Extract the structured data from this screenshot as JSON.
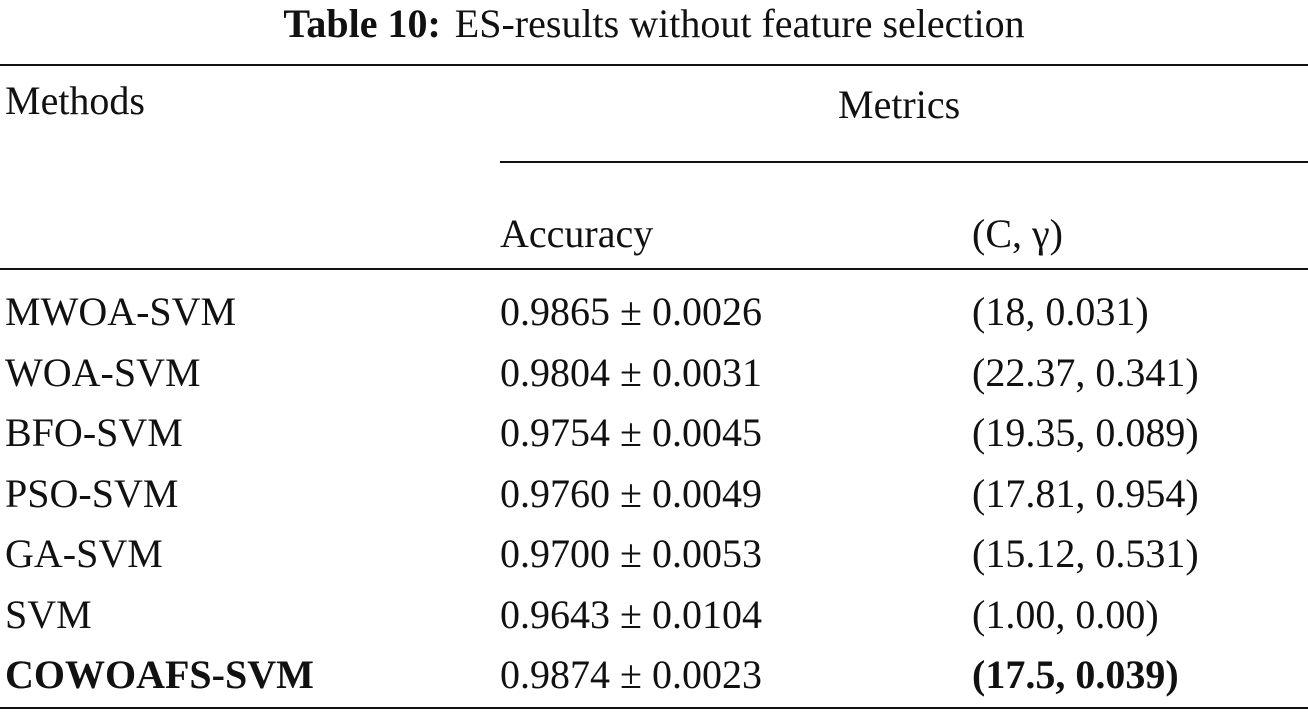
{
  "caption": {
    "label": "Table 10:",
    "text": "ES-results without feature selection"
  },
  "table": {
    "header": {
      "methods": "Methods",
      "metrics": "Metrics",
      "accuracy": "Accuracy",
      "params": "(C, γ)"
    },
    "rows": [
      [
        "MWOA-SVM",
        "0.9865 ± 0.0026",
        "(18, 0.031)"
      ],
      [
        "WOA-SVM",
        "0.9804 ± 0.0031",
        "(22.37, 0.341)"
      ],
      [
        "BFO-SVM",
        "0.9754 ± 0.0045",
        "(19.35, 0.089)"
      ],
      [
        "PSO-SVM",
        "0.9760 ± 0.0049",
        "(17.81, 0.954)"
      ],
      [
        "GA-SVM",
        "0.9700 ± 0.0053",
        "(15.12, 0.531)"
      ],
      [
        "SVM",
        "0.9643 ± 0.0104",
        "(1.00, 0.00)"
      ],
      [
        "COWOAFS-SVM",
        "0.9874 ± 0.0023",
        "(17.5, 0.039)"
      ]
    ]
  }
}
